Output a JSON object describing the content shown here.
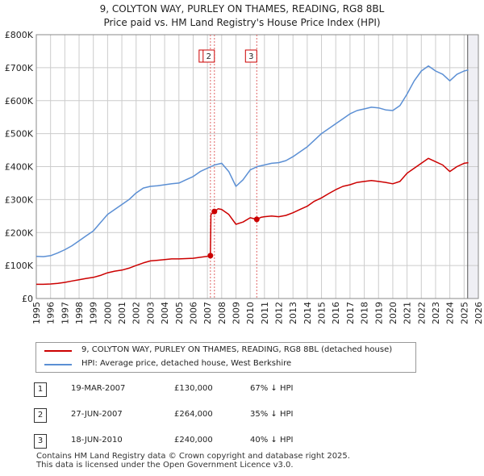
{
  "title_line1": "9, COLYTON WAY, PURLEY ON THAMES, READING, RG8 8BL",
  "title_line2": "Price paid vs. HM Land Registry's House Price Index (HPI)",
  "chart_data": {
    "type": "line",
    "title": "Price paid vs. HM Land Registry's House Price Index (HPI)",
    "xlabel": "",
    "ylabel": "",
    "xlim": [
      1995,
      2026
    ],
    "ylim": [
      0,
      800000
    ],
    "y_ticks": [
      0,
      100000,
      200000,
      300000,
      400000,
      500000,
      600000,
      700000,
      800000
    ],
    "y_tick_labels": [
      "£0",
      "£100K",
      "£200K",
      "£300K",
      "£400K",
      "£500K",
      "£600K",
      "£700K",
      "£800K"
    ],
    "x_ticks": [
      1995,
      1996,
      1997,
      1998,
      1999,
      2000,
      2001,
      2002,
      2003,
      2004,
      2005,
      2006,
      2007,
      2008,
      2009,
      2010,
      2011,
      2012,
      2013,
      2014,
      2015,
      2016,
      2017,
      2018,
      2019,
      2020,
      2021,
      2022,
      2023,
      2024,
      2025,
      2026
    ],
    "x_tick_labels": [
      "1995",
      "1996",
      "1997",
      "1998",
      "1999",
      "2000",
      "2001",
      "2002",
      "2003",
      "2004",
      "2005",
      "2006",
      "2007",
      "2008",
      "2009",
      "2010",
      "2011",
      "2012",
      "2013",
      "2014",
      "2015",
      "2016",
      "2017",
      "2018",
      "2019",
      "2020",
      "2021",
      "2022",
      "2023",
      "2024",
      "2025",
      "2026"
    ],
    "grid": true,
    "shaded_region_start": 2025.25,
    "series": [
      {
        "name": "9, COLYTON WAY, PURLEY ON THAMES, READING, RG8 8BL (detached house)",
        "color": "#cc0000",
        "x": [
          1995.0,
          1995.5,
          1996.0,
          1996.5,
          1997.0,
          1997.5,
          1998.0,
          1998.5,
          1999.0,
          1999.5,
          2000.0,
          2000.5,
          2001.0,
          2001.5,
          2002.0,
          2002.5,
          2003.0,
          2003.5,
          2004.0,
          2004.5,
          2005.0,
          2005.5,
          2006.0,
          2006.5,
          2007.0,
          2007.21,
          2007.25,
          2007.49,
          2007.75,
          2008.0,
          2008.5,
          2009.0,
          2009.5,
          2010.0,
          2010.46,
          2010.75,
          2011.0,
          2011.5,
          2012.0,
          2012.5,
          2013.0,
          2013.5,
          2014.0,
          2014.5,
          2015.0,
          2015.5,
          2016.0,
          2016.5,
          2017.0,
          2017.5,
          2018.0,
          2018.5,
          2019.0,
          2019.5,
          2020.0,
          2020.5,
          2021.0,
          2021.5,
          2022.0,
          2022.5,
          2023.0,
          2023.5,
          2024.0,
          2024.5,
          2025.0,
          2025.3
        ],
        "values": [
          43000,
          43000,
          44000,
          46000,
          49000,
          53000,
          57000,
          61000,
          64000,
          70000,
          78000,
          83000,
          86000,
          92000,
          100000,
          108000,
          114000,
          116000,
          118000,
          120000,
          120000,
          121000,
          122000,
          125000,
          128000,
          130000,
          255000,
          264000,
          272000,
          270000,
          255000,
          225000,
          232000,
          245000,
          240000,
          246000,
          248000,
          250000,
          248000,
          252000,
          260000,
          270000,
          280000,
          295000,
          305000,
          318000,
          330000,
          340000,
          345000,
          352000,
          355000,
          358000,
          355000,
          352000,
          348000,
          355000,
          380000,
          395000,
          410000,
          425000,
          415000,
          405000,
          385000,
          400000,
          410000,
          412000
        ]
      },
      {
        "name": "HPI: Average price, detached house, West Berkshire",
        "color": "#5b8fd4",
        "x": [
          1995.0,
          1995.5,
          1996.0,
          1996.5,
          1997.0,
          1997.5,
          1998.0,
          1998.5,
          1999.0,
          1999.5,
          2000.0,
          2000.5,
          2001.0,
          2001.5,
          2002.0,
          2002.5,
          2003.0,
          2003.5,
          2004.0,
          2004.5,
          2005.0,
          2005.5,
          2006.0,
          2006.5,
          2007.0,
          2007.5,
          2008.0,
          2008.5,
          2009.0,
          2009.5,
          2010.0,
          2010.5,
          2011.0,
          2011.5,
          2012.0,
          2012.5,
          2013.0,
          2013.5,
          2014.0,
          2014.5,
          2015.0,
          2015.5,
          2016.0,
          2016.5,
          2017.0,
          2017.5,
          2018.0,
          2018.5,
          2019.0,
          2019.5,
          2020.0,
          2020.5,
          2021.0,
          2021.5,
          2022.0,
          2022.5,
          2023.0,
          2023.5,
          2024.0,
          2024.5,
          2025.0,
          2025.3
        ],
        "values": [
          128000,
          127000,
          130000,
          138000,
          148000,
          160000,
          175000,
          190000,
          205000,
          230000,
          255000,
          270000,
          285000,
          300000,
          320000,
          335000,
          340000,
          342000,
          345000,
          348000,
          350000,
          360000,
          370000,
          385000,
          395000,
          405000,
          410000,
          385000,
          340000,
          360000,
          390000,
          400000,
          405000,
          410000,
          412000,
          418000,
          430000,
          445000,
          460000,
          480000,
          500000,
          515000,
          530000,
          545000,
          560000,
          570000,
          575000,
          580000,
          578000,
          572000,
          570000,
          585000,
          620000,
          660000,
          690000,
          705000,
          690000,
          680000,
          660000,
          680000,
          690000,
          693000
        ]
      }
    ],
    "transactions": [
      {
        "label": "1",
        "x": 2007.21,
        "value": 130000
      },
      {
        "label": "2",
        "x": 2007.49,
        "value": 264000
      },
      {
        "label": "3",
        "x": 2010.46,
        "value": 240000
      }
    ]
  },
  "legend": {
    "property_label": "9, COLYTON WAY, PURLEY ON THAMES, READING, RG8 8BL (detached house)",
    "hpi_label": "HPI: Average price, detached house, West Berkshire"
  },
  "transactions_table": [
    {
      "num": "1",
      "date": "19-MAR-2007",
      "price": "£130,000",
      "hpi": "67% ↓ HPI"
    },
    {
      "num": "2",
      "date": "27-JUN-2007",
      "price": "£264,000",
      "hpi": "35% ↓ HPI"
    },
    {
      "num": "3",
      "date": "18-JUN-2010",
      "price": "£240,000",
      "hpi": "40% ↓ HPI"
    }
  ],
  "footer": {
    "line1": "Contains HM Land Registry data © Crown copyright and database right 2025.",
    "line2": "This data is licensed under the Open Government Licence v3.0."
  },
  "colors": {
    "property": "#cc0000",
    "hpi": "#5b8fd4",
    "grid": "#cccccc",
    "marker_line": "#e06666"
  }
}
